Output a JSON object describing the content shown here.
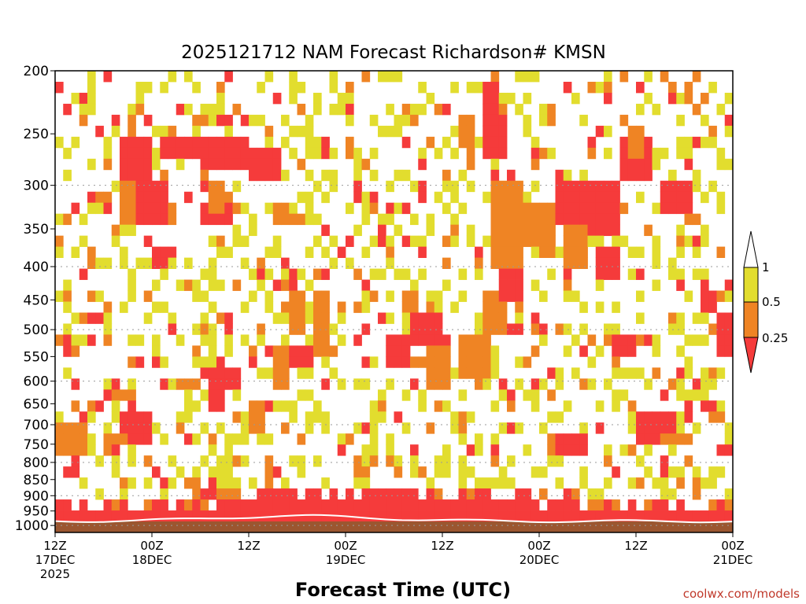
{
  "chart_data": {
    "type": "heatmap",
    "title": "2025121712 NAM Forecast Richardson# KMSN",
    "xlabel": "Forecast Time (UTC)",
    "ylabel": "",
    "credit": "coolwx.com/models",
    "y_ticks": [
      "200",
      "250",
      "300",
      "350",
      "400",
      "450",
      "500",
      "550",
      "600",
      "650",
      "700",
      "750",
      "800",
      "850",
      "900",
      "950",
      "1000"
    ],
    "y_range_hpa": [
      200,
      1025
    ],
    "x_range_hours": [
      0,
      84
    ],
    "x_ticks": [
      {
        "h": 0,
        "line1": "12Z",
        "line2": "17DEC",
        "line3": "2025"
      },
      {
        "h": 12,
        "line1": "00Z",
        "line2": "18DEC",
        "line3": ""
      },
      {
        "h": 24,
        "line1": "12Z",
        "line2": "",
        "line3": ""
      },
      {
        "h": 36,
        "line1": "00Z",
        "line2": "19DEC",
        "line3": ""
      },
      {
        "h": 48,
        "line1": "12Z",
        "line2": "",
        "line3": ""
      },
      {
        "h": 60,
        "line1": "00Z",
        "line2": "20DEC",
        "line3": ""
      },
      {
        "h": 72,
        "line1": "12Z",
        "line2": "",
        "line3": ""
      },
      {
        "h": 84,
        "line1": "00Z",
        "line2": "21DEC",
        "line3": ""
      }
    ],
    "gridlines_hpa": [
      300,
      400,
      500,
      600,
      700,
      800,
      900,
      1000
    ],
    "legend": {
      "labels": [
        "1",
        "0.5",
        "0.25"
      ],
      "colors": {
        "lt_0_25": "#f53b3b",
        "0_25_to_0_5": "#ef8424",
        "0_5_to_1": "#e2dd2e",
        "gt_1": "#ffffff",
        "surface": "#9b5630"
      }
    },
    "patches": [
      {
        "h": [
          8,
          12
        ],
        "p": [
          250,
          300
        ],
        "level": "lt_0_25"
      },
      {
        "h": [
          24,
          28
        ],
        "p": [
          260,
          300
        ],
        "level": "lt_0_25"
      },
      {
        "h": [
          18,
          24
        ],
        "p": [
          250,
          280
        ],
        "level": "lt_0_25"
      },
      {
        "h": [
          10,
          14
        ],
        "p": [
          300,
          350
        ],
        "level": "lt_0_25"
      },
      {
        "h": [
          18,
          22
        ],
        "p": [
          320,
          350
        ],
        "level": "lt_0_25"
      },
      {
        "h": [
          14,
          18
        ],
        "p": [
          250,
          270
        ],
        "level": "lt_0_25"
      },
      {
        "h": [
          8,
          10
        ],
        "p": [
          300,
          340
        ],
        "level": "0_25_to_0_5"
      },
      {
        "h": [
          19,
          21
        ],
        "p": [
          300,
          330
        ],
        "level": "0_25_to_0_5"
      },
      {
        "h": [
          27,
          29
        ],
        "p": [
          320,
          350
        ],
        "level": "0_25_to_0_5"
      },
      {
        "h": [
          12,
          14
        ],
        "p": [
          380,
          410
        ],
        "level": "lt_0_25"
      },
      {
        "h": [
          28,
          32
        ],
        "p": [
          530,
          580
        ],
        "level": "lt_0_25"
      },
      {
        "h": [
          27,
          29
        ],
        "p": [
          530,
          620
        ],
        "level": "0_25_to_0_5"
      },
      {
        "h": [
          29,
          31
        ],
        "p": [
          430,
          500
        ],
        "level": "0_25_to_0_5"
      },
      {
        "h": [
          32,
          34
        ],
        "p": [
          430,
          560
        ],
        "level": "0_25_to_0_5"
      },
      {
        "h": [
          41,
          44
        ],
        "p": [
          510,
          580
        ],
        "level": "lt_0_25"
      },
      {
        "h": [
          44,
          48
        ],
        "p": [
          470,
          520
        ],
        "level": "lt_0_25"
      },
      {
        "h": [
          46,
          49
        ],
        "p": [
          530,
          620
        ],
        "level": "0_25_to_0_5"
      },
      {
        "h": [
          43,
          45
        ],
        "p": [
          430,
          480
        ],
        "level": "0_25_to_0_5"
      },
      {
        "h": [
          50,
          54
        ],
        "p": [
          500,
          600
        ],
        "level": "0_25_to_0_5"
      },
      {
        "h": [
          53,
          56
        ],
        "p": [
          430,
          500
        ],
        "level": "0_25_to_0_5"
      },
      {
        "h": [
          55,
          58
        ],
        "p": [
          400,
          460
        ],
        "level": "lt_0_25"
      },
      {
        "h": [
          50,
          52
        ],
        "p": [
          230,
          260
        ],
        "level": "0_25_to_0_5"
      },
      {
        "h": [
          53,
          56
        ],
        "p": [
          230,
          270
        ],
        "level": "lt_0_25"
      },
      {
        "h": [
          53,
          55
        ],
        "p": [
          210,
          240
        ],
        "level": "lt_0_25"
      },
      {
        "h": [
          54,
          58
        ],
        "p": [
          300,
          400
        ],
        "level": "0_25_to_0_5"
      },
      {
        "h": [
          57,
          62
        ],
        "p": [
          320,
          380
        ],
        "level": "0_25_to_0_5"
      },
      {
        "h": [
          62,
          66
        ],
        "p": [
          300,
          350
        ],
        "level": "lt_0_25"
      },
      {
        "h": [
          66,
          70
        ],
        "p": [
          300,
          360
        ],
        "level": "lt_0_25"
      },
      {
        "h": [
          70,
          74
        ],
        "p": [
          250,
          300
        ],
        "level": "lt_0_25"
      },
      {
        "h": [
          71,
          73
        ],
        "p": [
          250,
          270
        ],
        "level": "0_25_to_0_5"
      },
      {
        "h": [
          75,
          79
        ],
        "p": [
          290,
          330
        ],
        "level": "lt_0_25"
      },
      {
        "h": [
          78,
          80
        ],
        "p": [
          330,
          350
        ],
        "level": "0_25_to_0_5"
      },
      {
        "h": [
          63,
          66
        ],
        "p": [
          350,
          400
        ],
        "level": "0_25_to_0_5"
      },
      {
        "h": [
          67,
          70
        ],
        "p": [
          380,
          420
        ],
        "level": "lt_0_25"
      },
      {
        "h": [
          69,
          72
        ],
        "p": [
          500,
          560
        ],
        "level": "lt_0_25"
      },
      {
        "h": [
          82,
          84
        ],
        "p": [
          480,
          560
        ],
        "level": "lt_0_25"
      },
      {
        "h": [
          80,
          82
        ],
        "p": [
          430,
          470
        ],
        "level": "lt_0_25"
      },
      {
        "h": [
          72,
          77
        ],
        "p": [
          670,
          740
        ],
        "level": "lt_0_25"
      },
      {
        "h": [
          75,
          79
        ],
        "p": [
          720,
          760
        ],
        "level": "0_25_to_0_5"
      },
      {
        "h": [
          62,
          66
        ],
        "p": [
          730,
          780
        ],
        "level": "lt_0_25"
      },
      {
        "h": [
          0,
          4
        ],
        "p": [
          690,
          770
        ],
        "level": "0_25_to_0_5"
      },
      {
        "h": [
          1,
          3
        ],
        "p": [
          820,
          860
        ],
        "level": "lt_0_25"
      },
      {
        "h": [
          8,
          12
        ],
        "p": [
          680,
          740
        ],
        "level": "lt_0_25"
      },
      {
        "h": [
          6,
          9
        ],
        "p": [
          720,
          760
        ],
        "level": "0_25_to_0_5"
      },
      {
        "h": [
          24,
          26
        ],
        "p": [
          650,
          720
        ],
        "level": "0_25_to_0_5"
      },
      {
        "h": [
          19,
          21
        ],
        "p": [
          630,
          680
        ],
        "level": "lt_0_25"
      },
      {
        "h": [
          19,
          23
        ],
        "p": [
          580,
          620
        ],
        "level": "lt_0_25"
      }
    ]
  }
}
